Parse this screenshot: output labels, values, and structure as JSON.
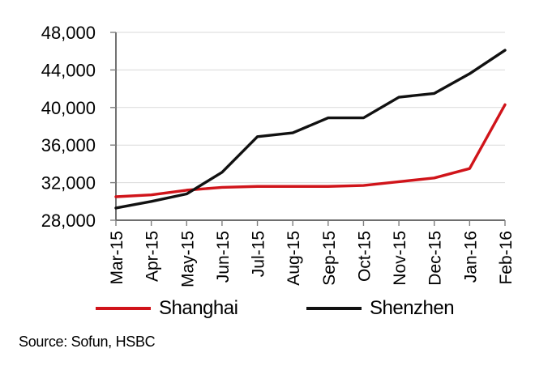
{
  "chart_data": {
    "type": "line",
    "x_categories": [
      "Mar-15",
      "Apr-15",
      "May-15",
      "Jun-15",
      "Jul-15",
      "Aug-15",
      "Sep-15",
      "Oct-15",
      "Nov-15",
      "Dec-15",
      "Jan-16",
      "Feb-16"
    ],
    "series": [
      {
        "name": "Shanghai",
        "color": "#d0141a",
        "values": [
          30500,
          30700,
          31200,
          31500,
          31600,
          31600,
          31600,
          31700,
          32100,
          32500,
          33500,
          40300
        ]
      },
      {
        "name": "Shenzhen",
        "color": "#111111",
        "values": [
          29300,
          30000,
          30800,
          33100,
          36900,
          37300,
          38900,
          38900,
          41100,
          41500,
          43600,
          46100
        ]
      }
    ],
    "ylim": [
      28000,
      48000
    ],
    "yticks": [
      28000,
      32000,
      36000,
      40000,
      44000,
      48000
    ],
    "ytick_labels": [
      "28,000",
      "32,000",
      "36,000",
      "40,000",
      "44,000",
      "48,000"
    ],
    "grid": "horizontal",
    "legend_position": "bottom"
  },
  "legend": {
    "items": [
      {
        "label": "Shanghai",
        "color": "#d0141a"
      },
      {
        "label": "Shenzhen",
        "color": "#111111"
      }
    ]
  },
  "source": {
    "text": "Source: Sofun, HSBC"
  },
  "style": {
    "axis_color": "#595959",
    "tick_color": "#7f7f7f",
    "grid_color": "#dadada",
    "label_color": "#000000"
  }
}
